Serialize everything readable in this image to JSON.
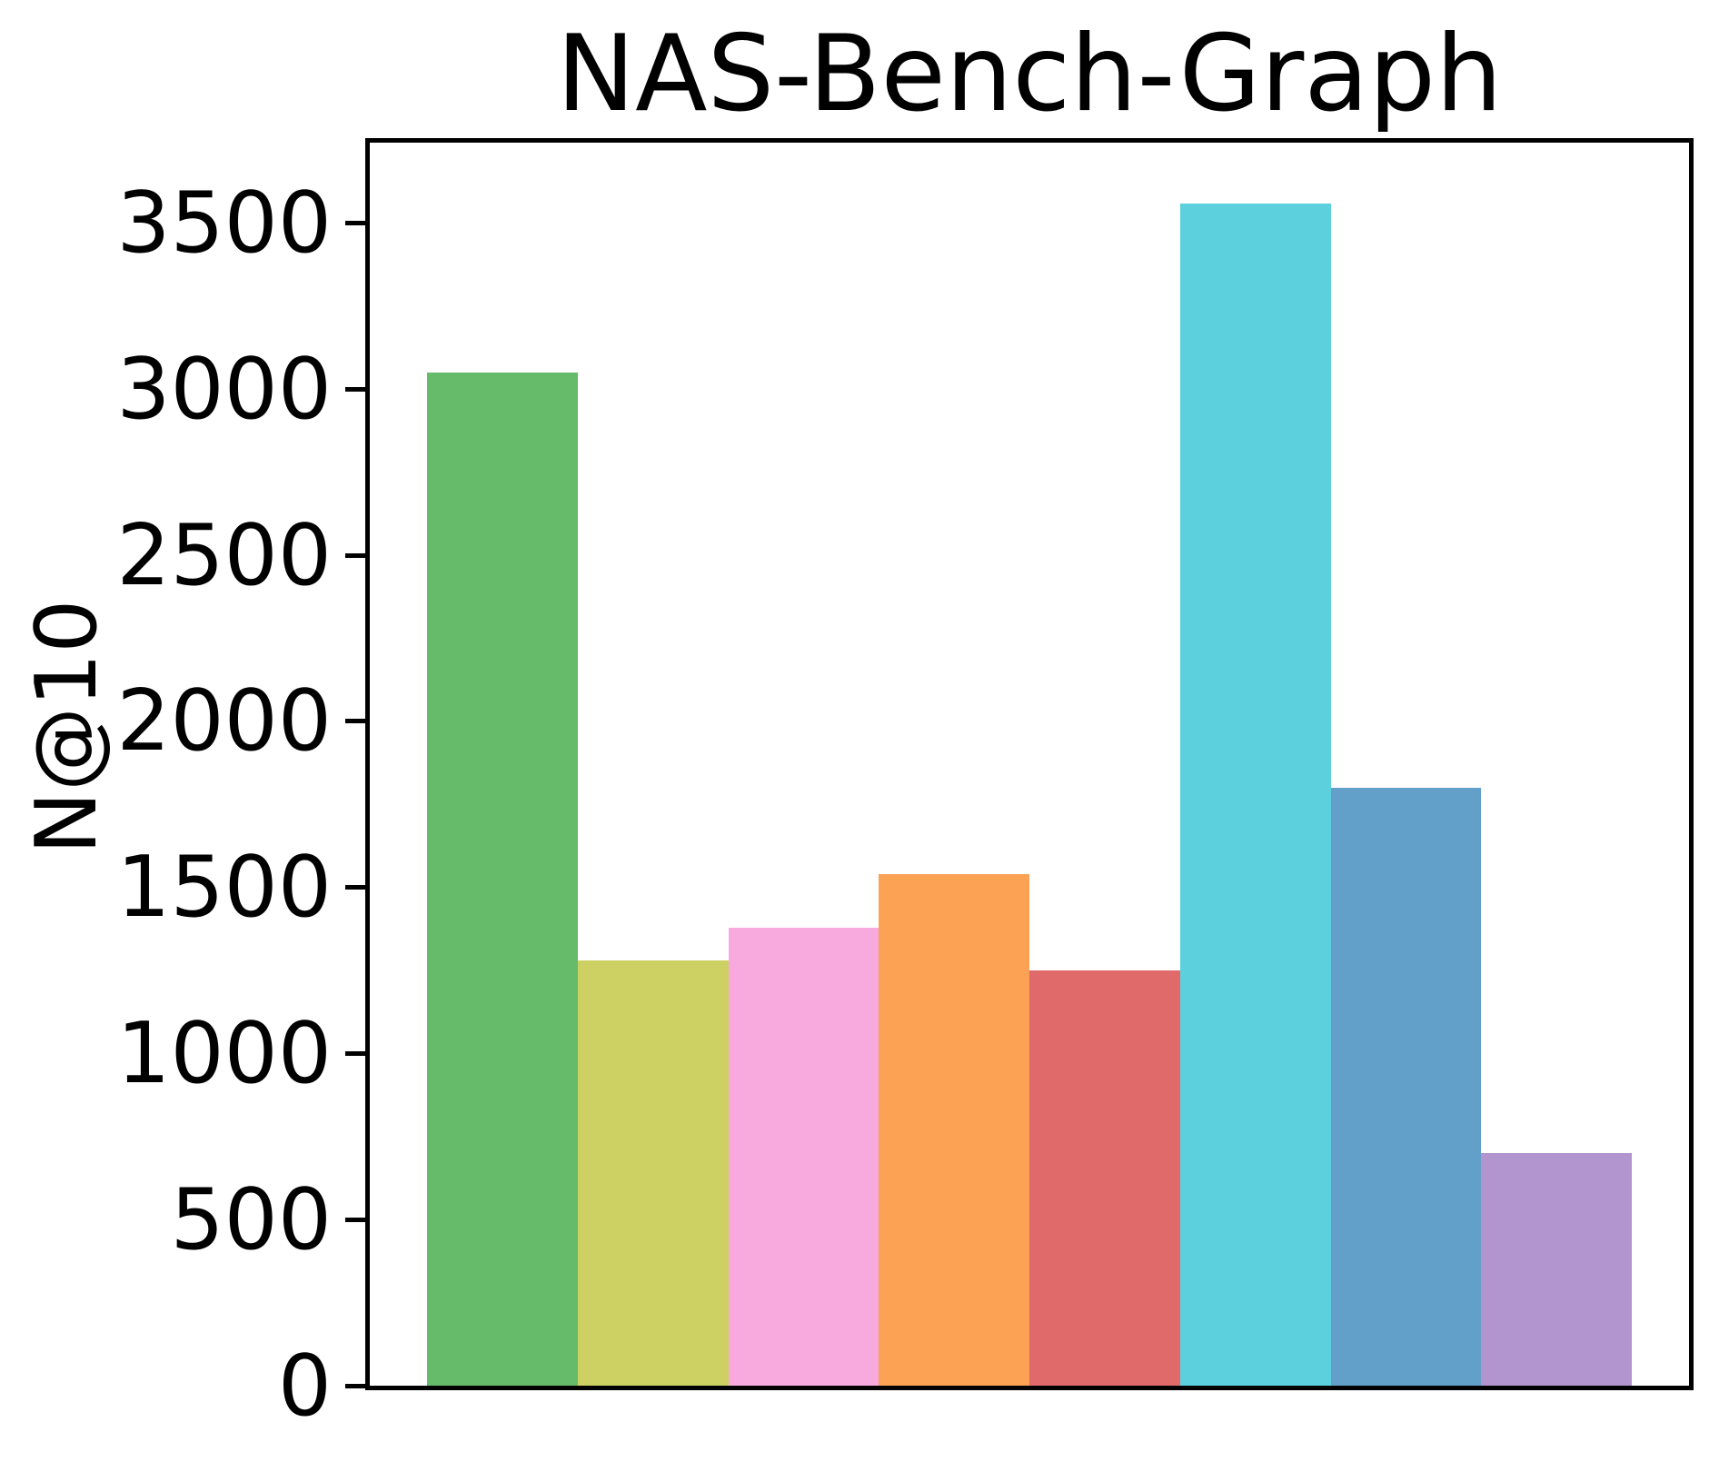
{
  "chart_data": {
    "type": "bar",
    "title": "NAS-Bench-Graph",
    "xlabel": "",
    "ylabel": "N@10",
    "x_tick_labels": "none",
    "yticks": [
      0,
      500,
      1000,
      1500,
      2000,
      2500,
      3000,
      3500
    ],
    "ylim": [
      0,
      3742
    ],
    "grid": false,
    "legend": "none",
    "bars": [
      {
        "name": "bar-1",
        "value": 3050,
        "color": "#66bb6b"
      },
      {
        "name": "bar-2",
        "value": 1280,
        "color": "#cdd164"
      },
      {
        "name": "bar-3",
        "value": 1380,
        "color": "#f8a9de"
      },
      {
        "name": "bar-4",
        "value": 1540,
        "color": "#fba254"
      },
      {
        "name": "bar-5",
        "value": 1250,
        "color": "#e06a6a"
      },
      {
        "name": "bar-6",
        "value": 3560,
        "color": "#5cd1dd"
      },
      {
        "name": "bar-7",
        "value": 1800,
        "color": "#62a0c9"
      },
      {
        "name": "bar-8",
        "value": 700,
        "color": "#b294ce"
      }
    ],
    "axis_color": "#000000",
    "background_color": "#ffffff"
  }
}
